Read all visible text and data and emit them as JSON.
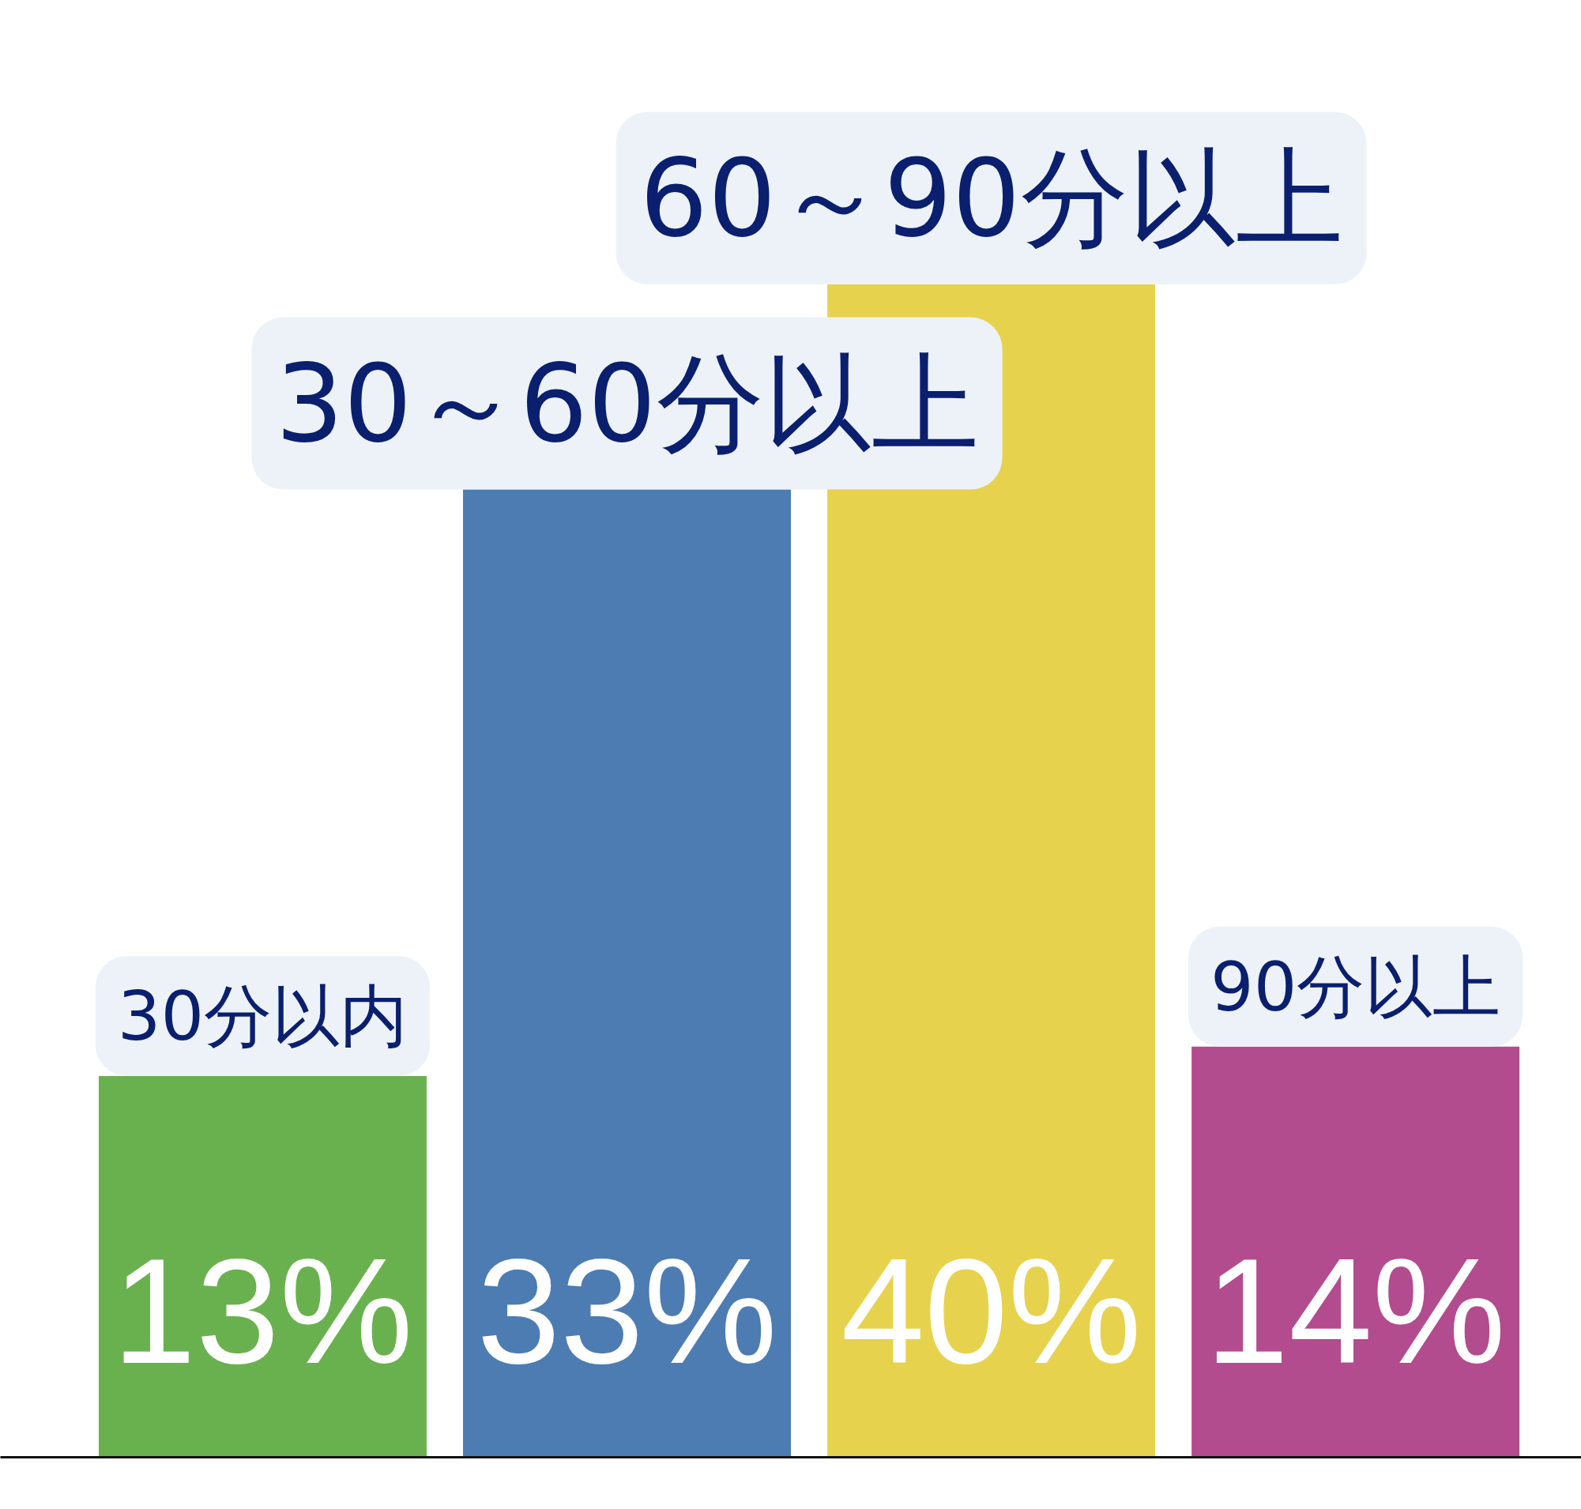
{
  "chart_data": {
    "type": "bar",
    "categories": [
      "30分以内",
      "30～60分以上",
      "60～90分以上",
      "90分以上"
    ],
    "values": [
      13,
      33,
      40,
      14
    ],
    "colors": [
      "#69b14e",
      "#4c7cb2",
      "#e7d24d",
      "#b24c8e"
    ],
    "value_labels": [
      "13%",
      "33%",
      "40%",
      "14%"
    ],
    "tick_labels": "x"
  }
}
